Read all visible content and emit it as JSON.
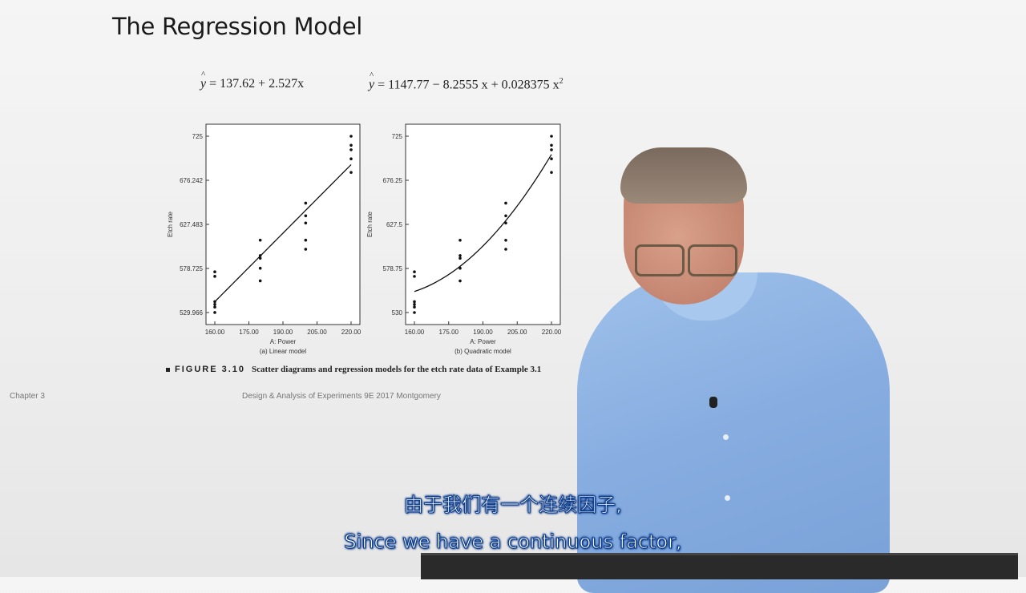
{
  "slide": {
    "title": "The Regression Model",
    "equation_linear": {
      "lhs": "y",
      "rhs": " = 137.62 + 2.527x"
    },
    "equation_quadratic": {
      "lhs": "y",
      "rhs": " = 1147.77 − 8.2555 x + 0.028375 x",
      "exponent": "2"
    },
    "figure_caption": {
      "number": "FIGURE 3.10",
      "text": "Scatter diagrams and regression models for the etch rate data of Example 3.1"
    },
    "footer_left": "Chapter 3",
    "footer_center": "Design & Analysis of Experiments 9E 2017 Montgomery"
  },
  "subtitles": {
    "chinese": "由于我们有一个连续因子,",
    "english": "Since we have a continuous factor,"
  },
  "colors": {
    "points": "#111111",
    "fit_line": "#111111",
    "subtitle_fill": "#ffffff",
    "subtitle_outline": "#0a3a8a"
  },
  "chart_data": [
    {
      "type": "scatter",
      "xlabel": "A: Power",
      "ylabel": "Etch rate",
      "caption": "(a) Linear model",
      "xlim": [
        160,
        220
      ],
      "ylim": [
        529.966,
        725
      ],
      "x_ticks": [
        "160.00",
        "175.00",
        "190.00",
        "205.00",
        "220.00"
      ],
      "y_ticks": [
        "529.966",
        "578.725",
        "627.483",
        "676.242",
        "725"
      ],
      "y_tick_values": [
        529.966,
        578.725,
        627.483,
        676.242,
        725
      ],
      "points": [
        {
          "x": 160,
          "y": 575
        },
        {
          "x": 160,
          "y": 542
        },
        {
          "x": 160,
          "y": 570
        },
        {
          "x": 160,
          "y": 539
        },
        {
          "x": 160,
          "y": 536
        },
        {
          "x": 160,
          "y": 530
        },
        {
          "x": 180,
          "y": 565
        },
        {
          "x": 180,
          "y": 593
        },
        {
          "x": 180,
          "y": 590
        },
        {
          "x": 180,
          "y": 579
        },
        {
          "x": 180,
          "y": 610
        },
        {
          "x": 200,
          "y": 600
        },
        {
          "x": 200,
          "y": 651
        },
        {
          "x": 200,
          "y": 610
        },
        {
          "x": 200,
          "y": 637
        },
        {
          "x": 200,
          "y": 629
        },
        {
          "x": 220,
          "y": 725
        },
        {
          "x": 220,
          "y": 700
        },
        {
          "x": 220,
          "y": 715
        },
        {
          "x": 220,
          "y": 685
        },
        {
          "x": 220,
          "y": 710
        }
      ],
      "fit": {
        "model": "linear",
        "intercept": 137.62,
        "slope": 2.527
      }
    },
    {
      "type": "scatter",
      "xlabel": "A: Power",
      "ylabel": "Etch rate",
      "caption": "(b) Quadratic model",
      "xlim": [
        160,
        220
      ],
      "ylim": [
        530,
        725
      ],
      "x_ticks": [
        "160.00",
        "175.00",
        "190.00",
        "205.00",
        "220.00"
      ],
      "y_ticks": [
        "530",
        "578.75",
        "627.5",
        "676.25",
        "725"
      ],
      "y_tick_values": [
        530,
        578.75,
        627.5,
        676.25,
        725
      ],
      "points": [
        {
          "x": 160,
          "y": 575
        },
        {
          "x": 160,
          "y": 542
        },
        {
          "x": 160,
          "y": 570
        },
        {
          "x": 160,
          "y": 539
        },
        {
          "x": 160,
          "y": 536
        },
        {
          "x": 160,
          "y": 530
        },
        {
          "x": 180,
          "y": 565
        },
        {
          "x": 180,
          "y": 593
        },
        {
          "x": 180,
          "y": 590
        },
        {
          "x": 180,
          "y": 579
        },
        {
          "x": 180,
          "y": 610
        },
        {
          "x": 200,
          "y": 600
        },
        {
          "x": 200,
          "y": 651
        },
        {
          "x": 200,
          "y": 610
        },
        {
          "x": 200,
          "y": 637
        },
        {
          "x": 200,
          "y": 629
        },
        {
          "x": 220,
          "y": 725
        },
        {
          "x": 220,
          "y": 700
        },
        {
          "x": 220,
          "y": 715
        },
        {
          "x": 220,
          "y": 685
        },
        {
          "x": 220,
          "y": 710
        }
      ],
      "fit": {
        "model": "quadratic",
        "b0": 1147.77,
        "b1": -8.2555,
        "b2": 0.028375
      }
    }
  ]
}
